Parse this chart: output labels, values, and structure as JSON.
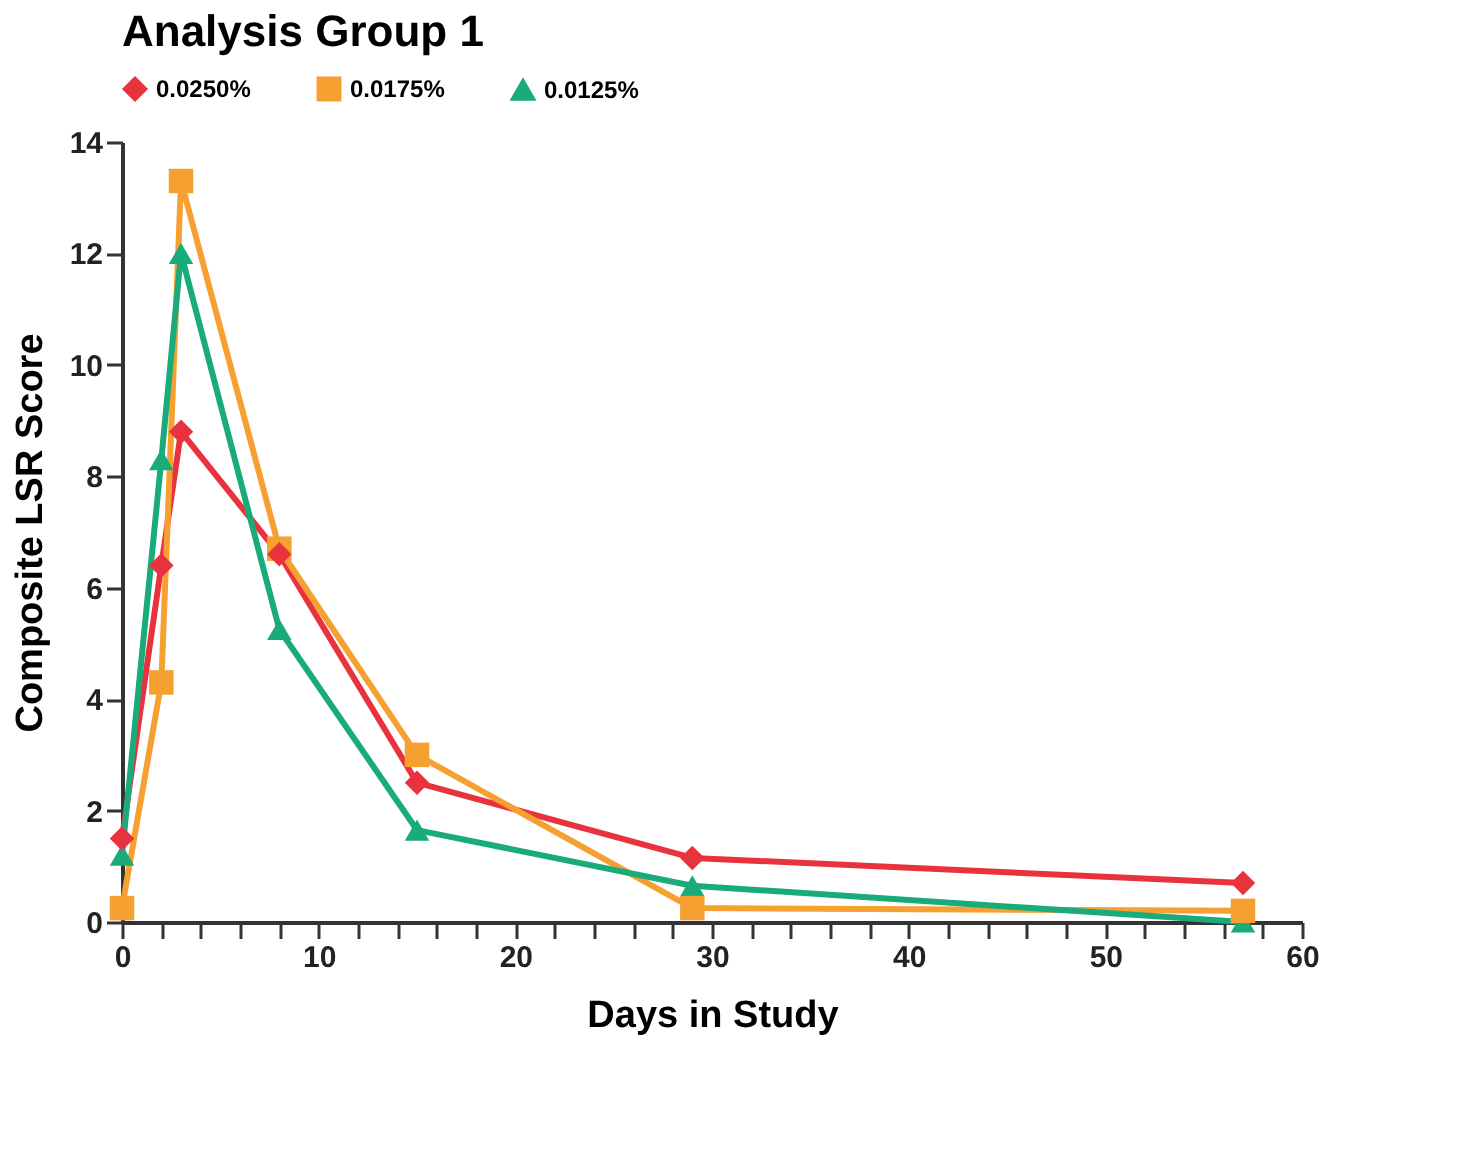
{
  "chart_data": {
    "type": "line",
    "title": "Analysis Group 1",
    "xlabel": "Days in Study",
    "ylabel": "Composite LSR Score",
    "x": [
      0,
      2,
      3,
      8,
      15,
      29,
      57
    ],
    "series": [
      {
        "name": "0.0250%",
        "color": "#e8333f",
        "marker": "diamond",
        "values": [
          1.5,
          6.4,
          8.8,
          6.6,
          2.5,
          1.15,
          0.7
        ]
      },
      {
        "name": "0.0175%",
        "color": "#f5a031",
        "marker": "square",
        "values": [
          0.25,
          4.3,
          13.3,
          6.7,
          3.0,
          0.25,
          0.2
        ]
      },
      {
        "name": "0.0125%",
        "color": "#1aab7b",
        "marker": "triangle",
        "values": [
          1.2,
          8.3,
          12.0,
          5.25,
          1.65,
          0.65,
          0.0
        ]
      }
    ],
    "xlim": [
      0,
      60
    ],
    "xticks": [
      0,
      {
        "value": 2,
        "label": null
      },
      {
        "value": 4,
        "label": null
      },
      {
        "value": 6,
        "label": null
      },
      {
        "value": 8,
        "label": null
      },
      10,
      {
        "value": 12,
        "label": null
      },
      {
        "value": 14,
        "label": null
      },
      {
        "value": 16,
        "label": null
      },
      {
        "value": 18,
        "label": null
      },
      20,
      {
        "value": 22,
        "label": null
      },
      {
        "value": 24,
        "label": null
      },
      {
        "value": 26,
        "label": null
      },
      {
        "value": 28,
        "label": null
      },
      30,
      {
        "value": 32,
        "label": null
      },
      {
        "value": 34,
        "label": null
      },
      {
        "value": 36,
        "label": null
      },
      {
        "value": 38,
        "label": null
      },
      40,
      {
        "value": 42,
        "label": null
      },
      {
        "value": 44,
        "label": null
      },
      {
        "value": 46,
        "label": null
      },
      {
        "value": 48,
        "label": null
      },
      50,
      {
        "value": 52,
        "label": null
      },
      {
        "value": 54,
        "label": null
      },
      {
        "value": 56,
        "label": null
      },
      {
        "value": 58,
        "label": null
      },
      60
    ],
    "ylim": [
      0,
      14
    ],
    "yticks": [
      0,
      2,
      4,
      6,
      8,
      10,
      12,
      14
    ],
    "grid": false,
    "legend": "top",
    "line_style": "solid"
  }
}
